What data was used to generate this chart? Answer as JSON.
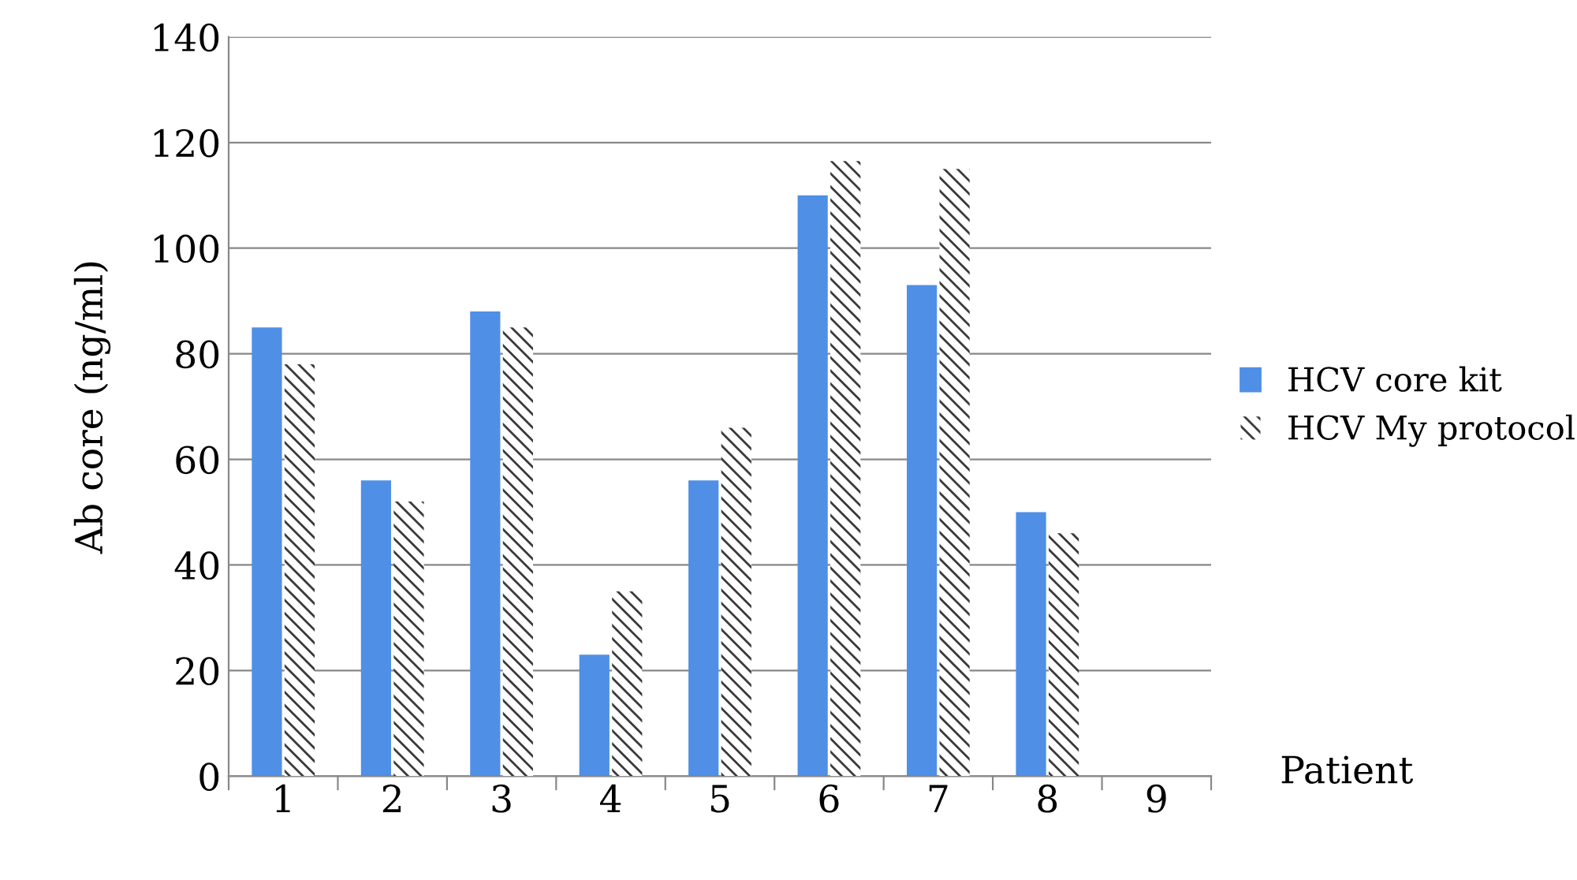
{
  "chart_data": {
    "type": "bar",
    "xlabel": "Patient",
    "ylabel": "Ab core (ng/ml)",
    "categories": [
      "1",
      "2",
      "3",
      "4",
      "5",
      "6",
      "7",
      "8",
      "9"
    ],
    "series": [
      {
        "name": "HCV core kit",
        "color": "#4f8fe6",
        "values": [
          85,
          56,
          88,
          23,
          56,
          110,
          93,
          50,
          null
        ]
      },
      {
        "name": "HCV My protocol",
        "color": "#3a3a3a",
        "values": [
          78,
          52,
          85,
          35,
          66,
          116.5,
          115,
          46,
          null
        ]
      }
    ],
    "ylim": [
      0,
      140
    ],
    "yticks": [
      0,
      20,
      40,
      60,
      80,
      100,
      120,
      140
    ],
    "grid": "y",
    "legend": "right"
  }
}
